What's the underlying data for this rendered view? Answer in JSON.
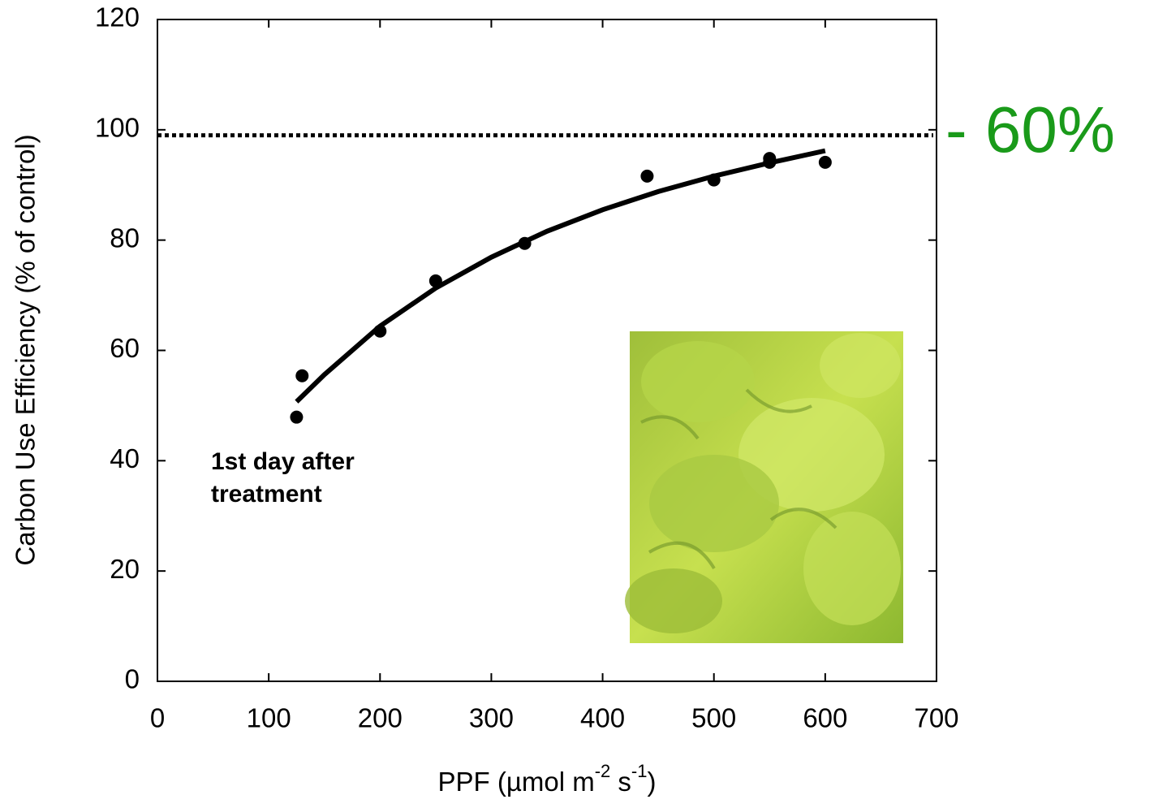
{
  "chart_data": {
    "type": "scatter",
    "xlabel": [
      "PPF (µmol m",
      "-2",
      " s",
      "-1",
      ")"
    ],
    "ylabel": "Carbon Use Efficiency (% of control)",
    "xlim": [
      0,
      700
    ],
    "xticks": [
      0,
      100,
      200,
      300,
      400,
      500,
      600,
      700
    ],
    "ylim": [
      0,
      120
    ],
    "yticks": [
      0,
      20,
      40,
      60,
      80,
      100,
      120
    ],
    "points": {
      "color": "#000000",
      "x": [
        125,
        130,
        200,
        250,
        330,
        440,
        500,
        550,
        550,
        600
      ],
      "y": [
        47.9,
        55.4,
        63.5,
        72.6,
        79.4,
        91.6,
        90.9,
        94.8,
        94.1,
        94.1
      ]
    },
    "fit": {
      "color": "#000000",
      "x": [
        125,
        150,
        200,
        250,
        300,
        350,
        400,
        450,
        500,
        550,
        600
      ],
      "y": [
        50.7,
        55.6,
        64.4,
        71.3,
        76.9,
        81.6,
        85.5,
        88.8,
        91.6,
        94.0,
        96.2
      ]
    },
    "reference_line": {
      "y": 99,
      "style": "dotted",
      "color": "#000000"
    },
    "annotation": [
      "1st day after",
      "treatment"
    ],
    "callout": {
      "text": "- 60%",
      "color": "#1a9a1a"
    }
  }
}
